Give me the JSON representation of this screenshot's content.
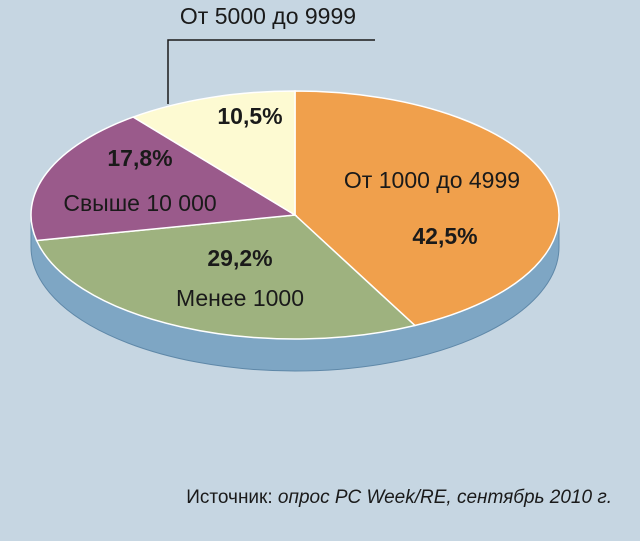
{
  "chart_data": {
    "type": "pie",
    "categories": [
      "От 1000 до 4999",
      "Менее 1000",
      "Свыше 10 000",
      "От 5000 до 9999"
    ],
    "values": [
      42.5,
      29.2,
      17.8,
      10.5
    ],
    "value_labels": [
      "42,5%",
      "29,2%",
      "17,8%",
      "10,5%"
    ],
    "colors": [
      "#f0a04c",
      "#9eb27f",
      "#9a5a8b",
      "#fdfad2"
    ],
    "side_color": "#7ea6c4",
    "source_label": "Источник:",
    "source": "опрос PC Week/RE, сентябрь 2010 г."
  }
}
